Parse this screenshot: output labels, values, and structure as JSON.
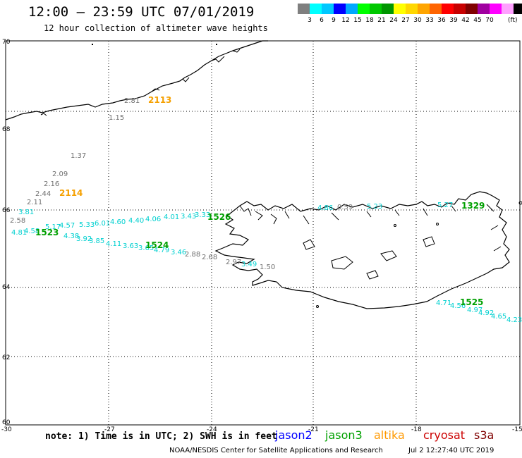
{
  "header": {
    "title": "12:00 – 23:59 UTC 07/01/2019",
    "subtitle": "12 hour collection of altimeter wave heights"
  },
  "colorbar": {
    "colors": [
      "#7f7f7f",
      "#00ffff",
      "#00c8ff",
      "#0000ff",
      "#00a8ff",
      "#00ff00",
      "#00c800",
      "#009600",
      "#ffff00",
      "#ffd700",
      "#ffa500",
      "#ff6400",
      "#ff0000",
      "#c80000",
      "#800000",
      "#a000a0",
      "#ff00ff",
      "#ffa0ff",
      "#000000"
    ],
    "labels": [
      "3",
      "6",
      "9",
      "12",
      "15",
      "18",
      "21",
      "24",
      "27",
      "30",
      "33",
      "36",
      "39",
      "42",
      "45",
      "70"
    ],
    "unit": "(ft)"
  },
  "axes": {
    "lon_ticks": [
      "-30",
      "-27",
      "-24",
      "-21",
      "-18",
      "-15"
    ],
    "lat_ticks": [
      "70",
      "68",
      "66",
      "64",
      "62",
      "60"
    ]
  },
  "passes": [
    {
      "id": "2113",
      "color": "#f5a000"
    },
    {
      "id": "2114",
      "color": "#f5a000"
    },
    {
      "id": "1523",
      "color": "#00a000"
    },
    {
      "id": "1524",
      "color": "#00a000"
    },
    {
      "id": "1525",
      "color": "#00a000"
    },
    {
      "id": "1526",
      "color": "#00a000"
    },
    {
      "id": "1329",
      "color": "#00a000"
    }
  ],
  "observations": [
    {
      "v": "2.81",
      "c": "#707070"
    },
    {
      "v": "1.15",
      "c": "#707070"
    },
    {
      "v": "1.37",
      "c": "#707070"
    },
    {
      "v": "2.09",
      "c": "#707070"
    },
    {
      "v": "2.16",
      "c": "#707070"
    },
    {
      "v": "2.44",
      "c": "#707070"
    },
    {
      "v": "2.11",
      "c": "#707070"
    },
    {
      "v": "3.81",
      "c": "#00d0d0"
    },
    {
      "v": "2.58",
      "c": "#707070"
    },
    {
      "v": "4.81",
      "c": "#00d0d0"
    },
    {
      "v": "4.58",
      "c": "#00d0d0"
    },
    {
      "v": "5.17",
      "c": "#00d0d0"
    },
    {
      "v": "4.57",
      "c": "#00d0d0"
    },
    {
      "v": "5.33",
      "c": "#00d0d0"
    },
    {
      "v": "6.01",
      "c": "#00d0d0"
    },
    {
      "v": "4.60",
      "c": "#00d0d0"
    },
    {
      "v": "4.40",
      "c": "#00d0d0"
    },
    {
      "v": "4.06",
      "c": "#00d0d0"
    },
    {
      "v": "4.01",
      "c": "#00d0d0"
    },
    {
      "v": "3.43",
      "c": "#00d0d0"
    },
    {
      "v": "3.33",
      "c": "#00d0d0"
    },
    {
      "v": "4.38",
      "c": "#00d0d0"
    },
    {
      "v": "3.92",
      "c": "#00d0d0"
    },
    {
      "v": "3.85",
      "c": "#00d0d0"
    },
    {
      "v": "4.11",
      "c": "#00d0d0"
    },
    {
      "v": "3.63",
      "c": "#00d0d0"
    },
    {
      "v": "3.65",
      "c": "#00d0d0"
    },
    {
      "v": "4.79",
      "c": "#00d0d0"
    },
    {
      "v": "3.46",
      "c": "#00d0d0"
    },
    {
      "v": "2.88",
      "c": "#707070"
    },
    {
      "v": "2.68",
      "c": "#707070"
    },
    {
      "v": "2.97",
      "c": "#707070"
    },
    {
      "v": "3.49",
      "c": "#00d0d0"
    },
    {
      "v": "1.50",
      "c": "#707070"
    },
    {
      "v": "4.86",
      "c": "#00d0d0"
    },
    {
      "v": "0.59",
      "c": "#707070"
    },
    {
      "v": "5.23",
      "c": "#00d0d0"
    },
    {
      "v": "5.27",
      "c": "#00d0d0"
    },
    {
      "v": "4.71",
      "c": "#00d0d0"
    },
    {
      "v": "4.56",
      "c": "#00d0d0"
    },
    {
      "v": "4.97",
      "c": "#00d0d0"
    },
    {
      "v": "4.92",
      "c": "#00d0d0"
    },
    {
      "v": "4.65",
      "c": "#00d0d0"
    },
    {
      "v": "4.23",
      "c": "#00d0d0"
    }
  ],
  "footer": {
    "note": "note: 1) Time is in UTC; 2) SWH is in feet",
    "missions": [
      {
        "name": "jason2",
        "color": "#0000ff"
      },
      {
        "name": "jason3",
        "color": "#00a000"
      },
      {
        "name": "altika",
        "color": "#ff9900"
      },
      {
        "name": "cryosat",
        "color": "#cc0000"
      },
      {
        "name": "s3a",
        "color": "#800000"
      }
    ],
    "credit": "NOAA/NESDIS Center for Satellite Applications and Research",
    "timestamp": "Jul  2 12:27:40 UTC 2019"
  }
}
